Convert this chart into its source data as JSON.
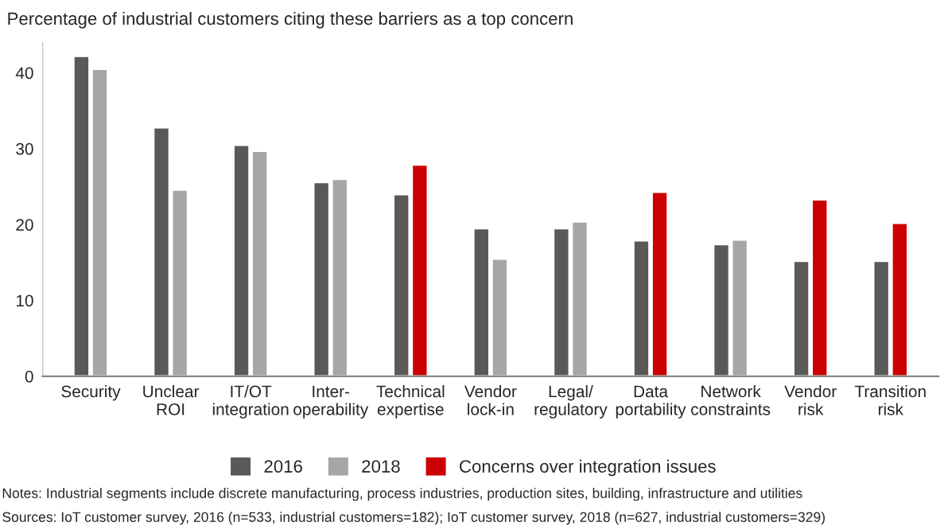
{
  "chart_data": {
    "type": "bar",
    "title": "Percentage of industrial customers citing these barriers as a top concern",
    "categories": [
      "Security",
      "Unclear\nROI",
      "IT/OT\nintegration",
      "Inter-\noperability",
      "Technical\nexpertise",
      "Vendor\nlock-in",
      "Legal/\nregulatory",
      "Data\nportability",
      "Network\nconstraints",
      "Vendor\nrisk",
      "Transition\nrisk"
    ],
    "series": [
      {
        "name": "2016",
        "color": "#595959",
        "values": [
          42.2,
          32.8,
          30.5,
          25.6,
          24.0,
          19.5,
          19.5,
          17.9,
          17.4,
          15.2,
          15.2
        ]
      },
      {
        "name": "2018",
        "color": "#a6a6a6",
        "values": [
          40.5,
          24.6,
          29.7,
          26.0,
          null,
          15.5,
          20.4,
          null,
          18.0,
          null,
          null
        ]
      },
      {
        "name": "Concerns over integration issues",
        "color": "#cc0000",
        "values": [
          null,
          null,
          null,
          null,
          27.9,
          null,
          null,
          24.3,
          null,
          23.3,
          20.2
        ]
      }
    ],
    "ylim": [
      0,
      44
    ],
    "yticks": [
      0,
      10,
      20,
      30,
      40
    ],
    "grid": false,
    "legend": "bottom",
    "annotations": [
      "Notes: Industrial segments include discrete manufacturing, process industries, production sites, building, infrastructure and utilities",
      "Sources: IoT customer survey, 2016 (n=533, industrial customers=182); IoT customer survey, 2018 (n=627, industrial customers=329)"
    ]
  }
}
